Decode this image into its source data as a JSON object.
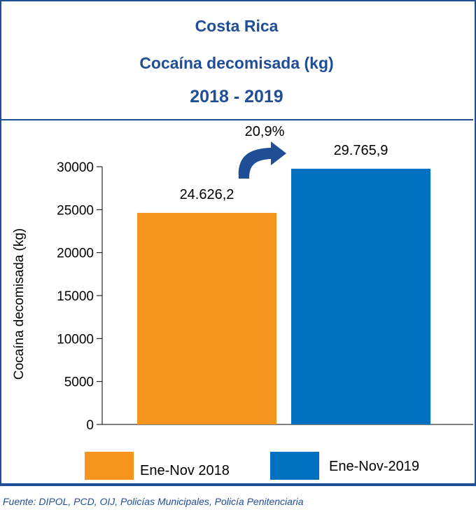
{
  "header": {
    "line1": "Costa Rica",
    "line2": "Cocaína decomisada (kg)",
    "line3": "2018 - 2019"
  },
  "chart_data": {
    "type": "bar",
    "categories": [
      "Ene-Nov 2018",
      "Ene-Nov-2019"
    ],
    "values": [
      24626.2,
      29765.9
    ],
    "data_labels": [
      "24.626,2",
      "29.765,9"
    ],
    "colors": [
      "#f7941d",
      "#0070c0"
    ],
    "ylabel": "Cocaína decomisada (kg)",
    "ylim": [
      0,
      30000
    ],
    "yticks": [
      0,
      5000,
      10000,
      15000,
      20000,
      25000,
      30000
    ],
    "grid": false,
    "legend": "bottom",
    "annotation": "20,9%",
    "annotation_color": "#1f4e96"
  },
  "source": "Fuente: DIPOL, PCD, OIJ, Policías Municipales, Policía Penitenciaria"
}
